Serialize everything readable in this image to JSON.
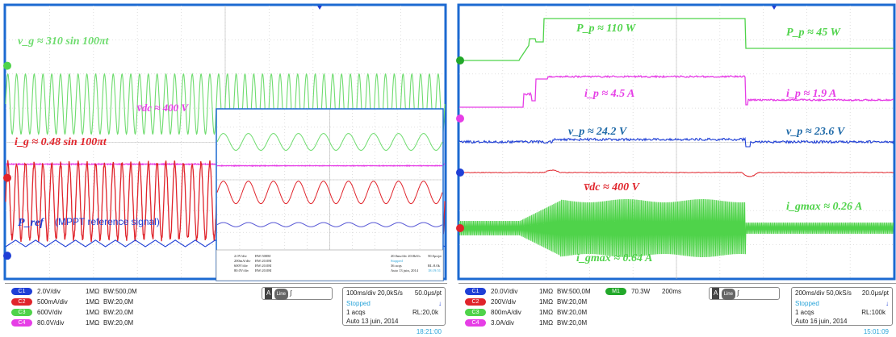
{
  "colors": {
    "ch1": "#1f3fd6",
    "ch2": "#e0242b",
    "ch3": "#4fd34a",
    "ch4": "#e63ee6",
    "math": "#22a82a",
    "grid": "#c8c8c8",
    "frame": "#1c6ad1",
    "stopped": "#29a4d9",
    "time": "#29a4d9"
  },
  "chart_data": [
    {
      "type": "line",
      "name": "left-oscilloscope",
      "grid": true,
      "series": [
        {
          "id": "vg",
          "channel": "3",
          "color": "#6fdc6f",
          "kind": "sine",
          "cycles": 50,
          "amp": 0.11,
          "offset": 0.64
        },
        {
          "id": "vdc",
          "channel": "4",
          "color": "#e63ee6",
          "kind": "flat",
          "offset": 0.42
        },
        {
          "id": "ig",
          "channel": "2",
          "color": "#e0242b",
          "kind": "sine",
          "cycles": 50,
          "amp": 0.14,
          "offset": 0.285
        },
        {
          "id": "pref",
          "channel": "1",
          "color": "#1f3fd6",
          "kind": "triangle",
          "cycles": 22,
          "amp": 0.012,
          "offset": 0.13
        }
      ],
      "annotations": [
        {
          "id": "vg",
          "text": "v_g ≈ 310 sin 100πt"
        },
        {
          "id": "vdc",
          "text": "v̅dc ≈ 400 V"
        },
        {
          "id": "ig",
          "text": "i_g ≈ 0.48 sin 100πt"
        },
        {
          "id": "pref",
          "text": "P_ref",
          "suffix": "(MPPT reference signal)"
        }
      ],
      "inset": {
        "series": [
          {
            "color": "#6fdc6f",
            "kind": "sine",
            "cycles": 9,
            "amp": 0.06,
            "offset": 0.77
          },
          {
            "color": "#e63ee6",
            "kind": "flat",
            "offset": 0.6
          },
          {
            "color": "#e0242b",
            "kind": "sine",
            "cycles": 9,
            "amp": 0.08,
            "offset": 0.41
          },
          {
            "color": "#5a5ad6",
            "kind": "sine",
            "cycles": 9,
            "amp": 0.015,
            "offset": 0.18
          }
        ],
        "status": {
          "rows": [
            {
              "ch": "C1",
              "div": "2.0V/div",
              "imp": "1MΩ",
              "bw": "BW:500M"
            },
            {
              "ch": "C2",
              "div": "200mA/div",
              "imp": "1MΩ",
              "bw": "BW:20.0M"
            },
            {
              "ch": "C3",
              "div": "600V/div",
              "imp": "1MΩ",
              "bw": "BW:20.0M"
            },
            {
              "ch": "C4",
              "div": "80.0V/div",
              "imp": "1MΩ",
              "bw": "BW:20.0M"
            }
          ],
          "timebase": "20.0ms/div 20.0kS/s",
          "sample": "50.0μs/pt",
          "stopped": "Stopped",
          "acqs": "36 acqs",
          "rl": "RL:8.0k",
          "date": "Auto 13 juin, 2014",
          "time": "18:19:51"
        }
      }
    },
    {
      "type": "line",
      "name": "right-oscilloscope",
      "grid": true,
      "series": [
        {
          "id": "pp",
          "channel": "M1",
          "color": "#4fd34a",
          "kind": "step"
        },
        {
          "id": "ip",
          "channel": "4",
          "color": "#e63ee6",
          "kind": "step"
        },
        {
          "id": "vp",
          "channel": "1",
          "color": "#1f3fd6",
          "kind": "noisy-flat"
        },
        {
          "id": "vdc",
          "channel": "2",
          "color": "#e0242b",
          "kind": "flat-bump"
        },
        {
          "id": "igmax",
          "channel": "3",
          "color": "#4fd34a",
          "kind": "envelope"
        }
      ],
      "annotations": [
        {
          "id": "pp1",
          "text": "P_p ≈ 110 W"
        },
        {
          "id": "pp2",
          "text": "P_p ≈ 45 W"
        },
        {
          "id": "ip1",
          "text": "i_p ≈ 4.5 A"
        },
        {
          "id": "ip2",
          "text": "i_p ≈ 1.9 A"
        },
        {
          "id": "vp1",
          "text": "v_p ≈ 24.2 V"
        },
        {
          "id": "vp2",
          "text": "v_p ≈ 23.6 V"
        },
        {
          "id": "vdc",
          "text": "v̅dc ≈ 400 V"
        },
        {
          "id": "ig1",
          "text": "i_gmax ≈ 0.64 A"
        },
        {
          "id": "ig2",
          "text": "i_gmax ≈ 0.26 A"
        }
      ]
    }
  ],
  "left_status": {
    "rows": [
      {
        "ch": "C1",
        "div": "2.0V/div",
        "imp": "1MΩ",
        "bw": "BW:500,0M"
      },
      {
        "ch": "C2",
        "div": "500mA/div",
        "imp": "1MΩ",
        "bw": "BW:20,0M"
      },
      {
        "ch": "C3",
        "div": "600V/div",
        "imp": "1MΩ",
        "bw": "BW:20,0M"
      },
      {
        "ch": "C4",
        "div": "80.0V/div",
        "imp": "1MΩ",
        "bw": "BW:20,0M"
      }
    ],
    "trigger": "A",
    "trigger_mode": "Line",
    "timebase": "100ms/div 20,0kS/s",
    "sample": "50.0μs/pt",
    "stopped": "Stopped",
    "acqs": "1 acqs",
    "rl": "RL:20,0k",
    "date": "Auto 13 juin, 2014",
    "time": "18:21:00"
  },
  "right_status": {
    "rows": [
      {
        "ch": "C1",
        "div": "20.0V/div",
        "imp": "1MΩ",
        "bw": "BW:500,0M"
      },
      {
        "ch": "C2",
        "div": "200V/div",
        "imp": "1MΩ",
        "bw": "BW:20,0M"
      },
      {
        "ch": "C3",
        "div": "800mA/div",
        "imp": "1MΩ",
        "bw": "BW:20,0M"
      },
      {
        "ch": "C4",
        "div": "3.0A/div",
        "imp": "1MΩ",
        "bw": "BW:20,0M"
      }
    ],
    "math": {
      "label": "M1",
      "value": "70.3W",
      "time": "200ms"
    },
    "trigger": "A",
    "trigger_mode": "Line",
    "timebase": "200ms/div 50,0kS/s",
    "sample": "20.0μs/pt",
    "stopped": "Stopped",
    "acqs": "1 acqs",
    "rl": "RL:100k",
    "date": "Auto 16 juin, 2014",
    "time": "15:01:09"
  }
}
